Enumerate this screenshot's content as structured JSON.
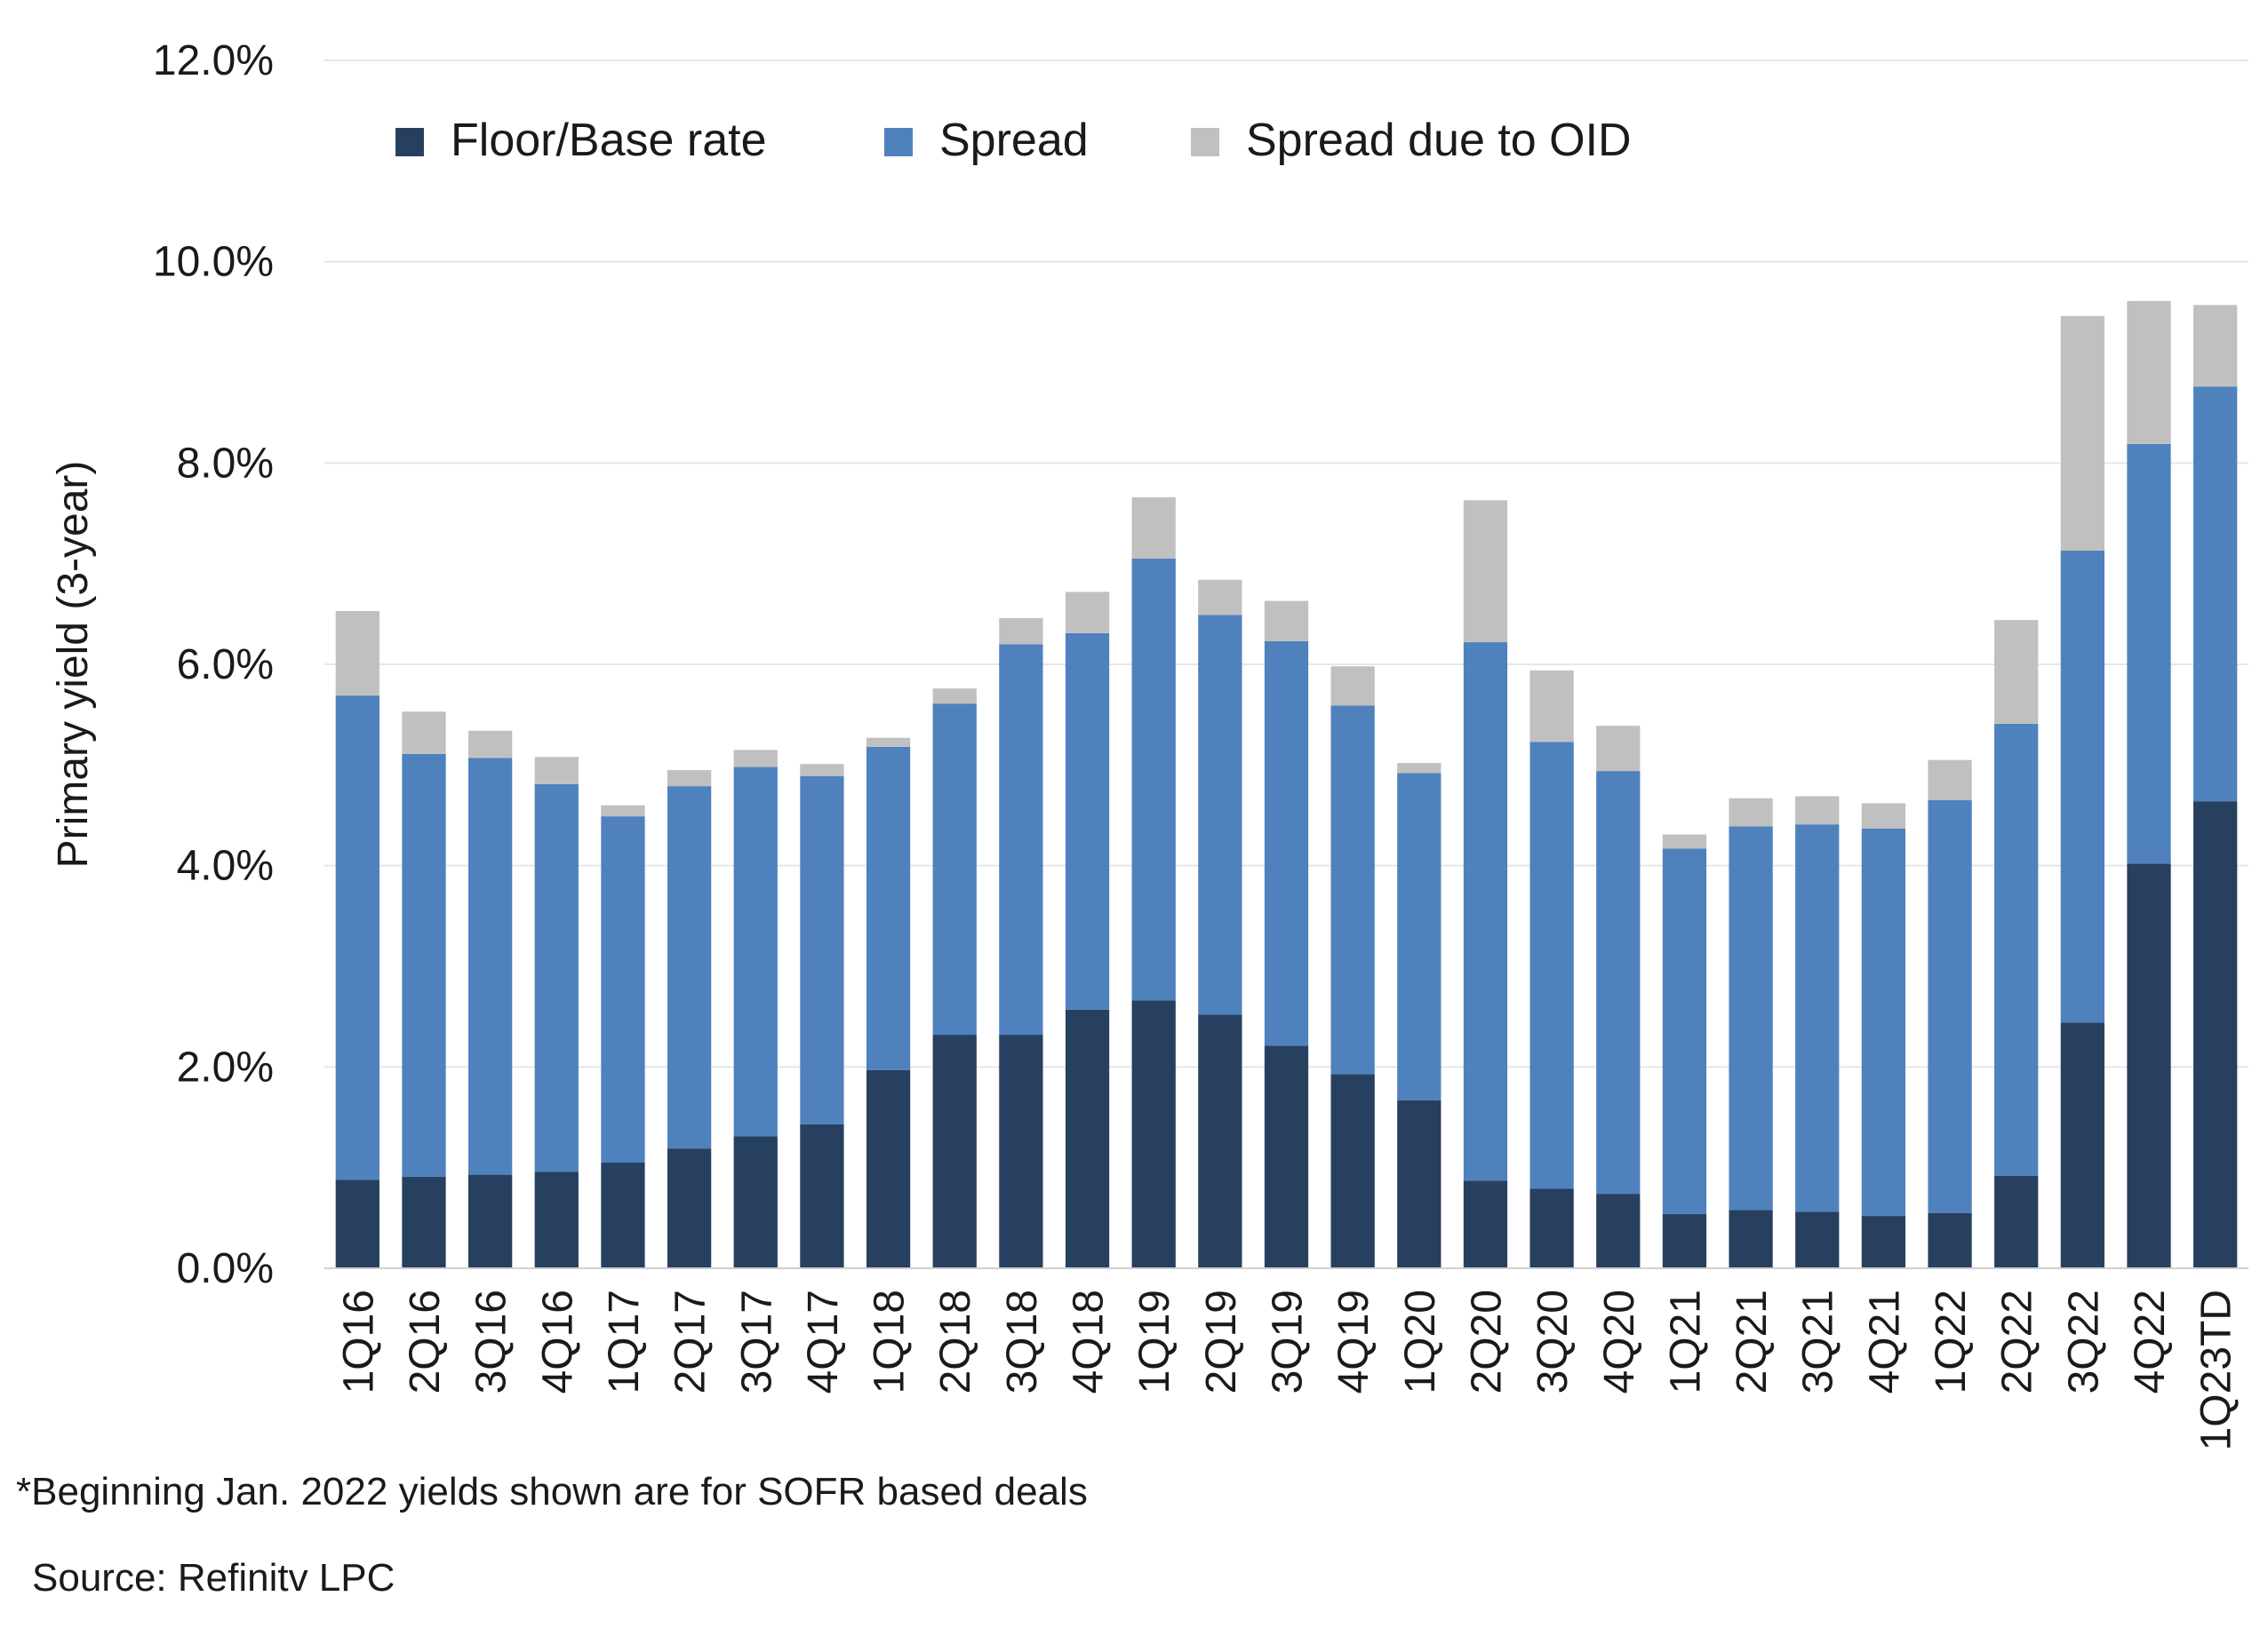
{
  "chart_data": {
    "type": "bar",
    "stacked": true,
    "ylabel": "Primary yield (3-year)",
    "xlabel": "",
    "ylim": [
      0,
      12
    ],
    "yticks": [
      "0.0%",
      "2.0%",
      "4.0%",
      "6.0%",
      "8.0%",
      "10.0%",
      "12.0%"
    ],
    "grid": true,
    "legend_position": "top-center",
    "categories": [
      "1Q16",
      "2Q16",
      "3Q16",
      "4Q16",
      "1Q17",
      "2Q17",
      "3Q17",
      "4Q17",
      "1Q18",
      "2Q18",
      "3Q18",
      "4Q18",
      "1Q19",
      "2Q19",
      "3Q19",
      "4Q19",
      "1Q20",
      "2Q20",
      "3Q20",
      "4Q20",
      "1Q21",
      "2Q21",
      "3Q21",
      "4Q21",
      "1Q22",
      "2Q22",
      "3Q22",
      "4Q22",
      "1Q23TD"
    ],
    "series": [
      {
        "name": "Floor/Base rate",
        "color": "#27405f",
        "values": [
          0.88,
          0.91,
          0.93,
          0.96,
          1.05,
          1.19,
          1.31,
          1.43,
          1.97,
          2.32,
          2.32,
          2.57,
          2.66,
          2.52,
          2.21,
          1.93,
          1.67,
          0.87,
          0.79,
          0.74,
          0.54,
          0.58,
          0.56,
          0.52,
          0.55,
          0.92,
          2.44,
          4.02,
          4.64
        ]
      },
      {
        "name": "Spread",
        "color": "#4f81bd",
        "values": [
          4.81,
          4.2,
          4.14,
          3.85,
          3.44,
          3.6,
          3.67,
          3.46,
          3.21,
          3.29,
          3.88,
          3.74,
          4.39,
          3.97,
          4.02,
          3.66,
          3.25,
          5.35,
          4.44,
          4.2,
          3.63,
          3.81,
          3.85,
          3.85,
          4.1,
          4.49,
          4.69,
          4.17,
          4.12
        ]
      },
      {
        "name": "Spread due to OID",
        "color": "#c0c0c0",
        "values": [
          0.84,
          0.42,
          0.27,
          0.27,
          0.11,
          0.16,
          0.17,
          0.12,
          0.09,
          0.15,
          0.26,
          0.41,
          0.61,
          0.35,
          0.4,
          0.39,
          0.1,
          1.41,
          0.71,
          0.45,
          0.14,
          0.28,
          0.28,
          0.25,
          0.4,
          1.03,
          2.33,
          1.42,
          0.81
        ]
      }
    ]
  },
  "footnote": "*Beginning Jan. 2022 yields shown are for SOFR based deals",
  "source": "Source:  Refinitv LPC"
}
